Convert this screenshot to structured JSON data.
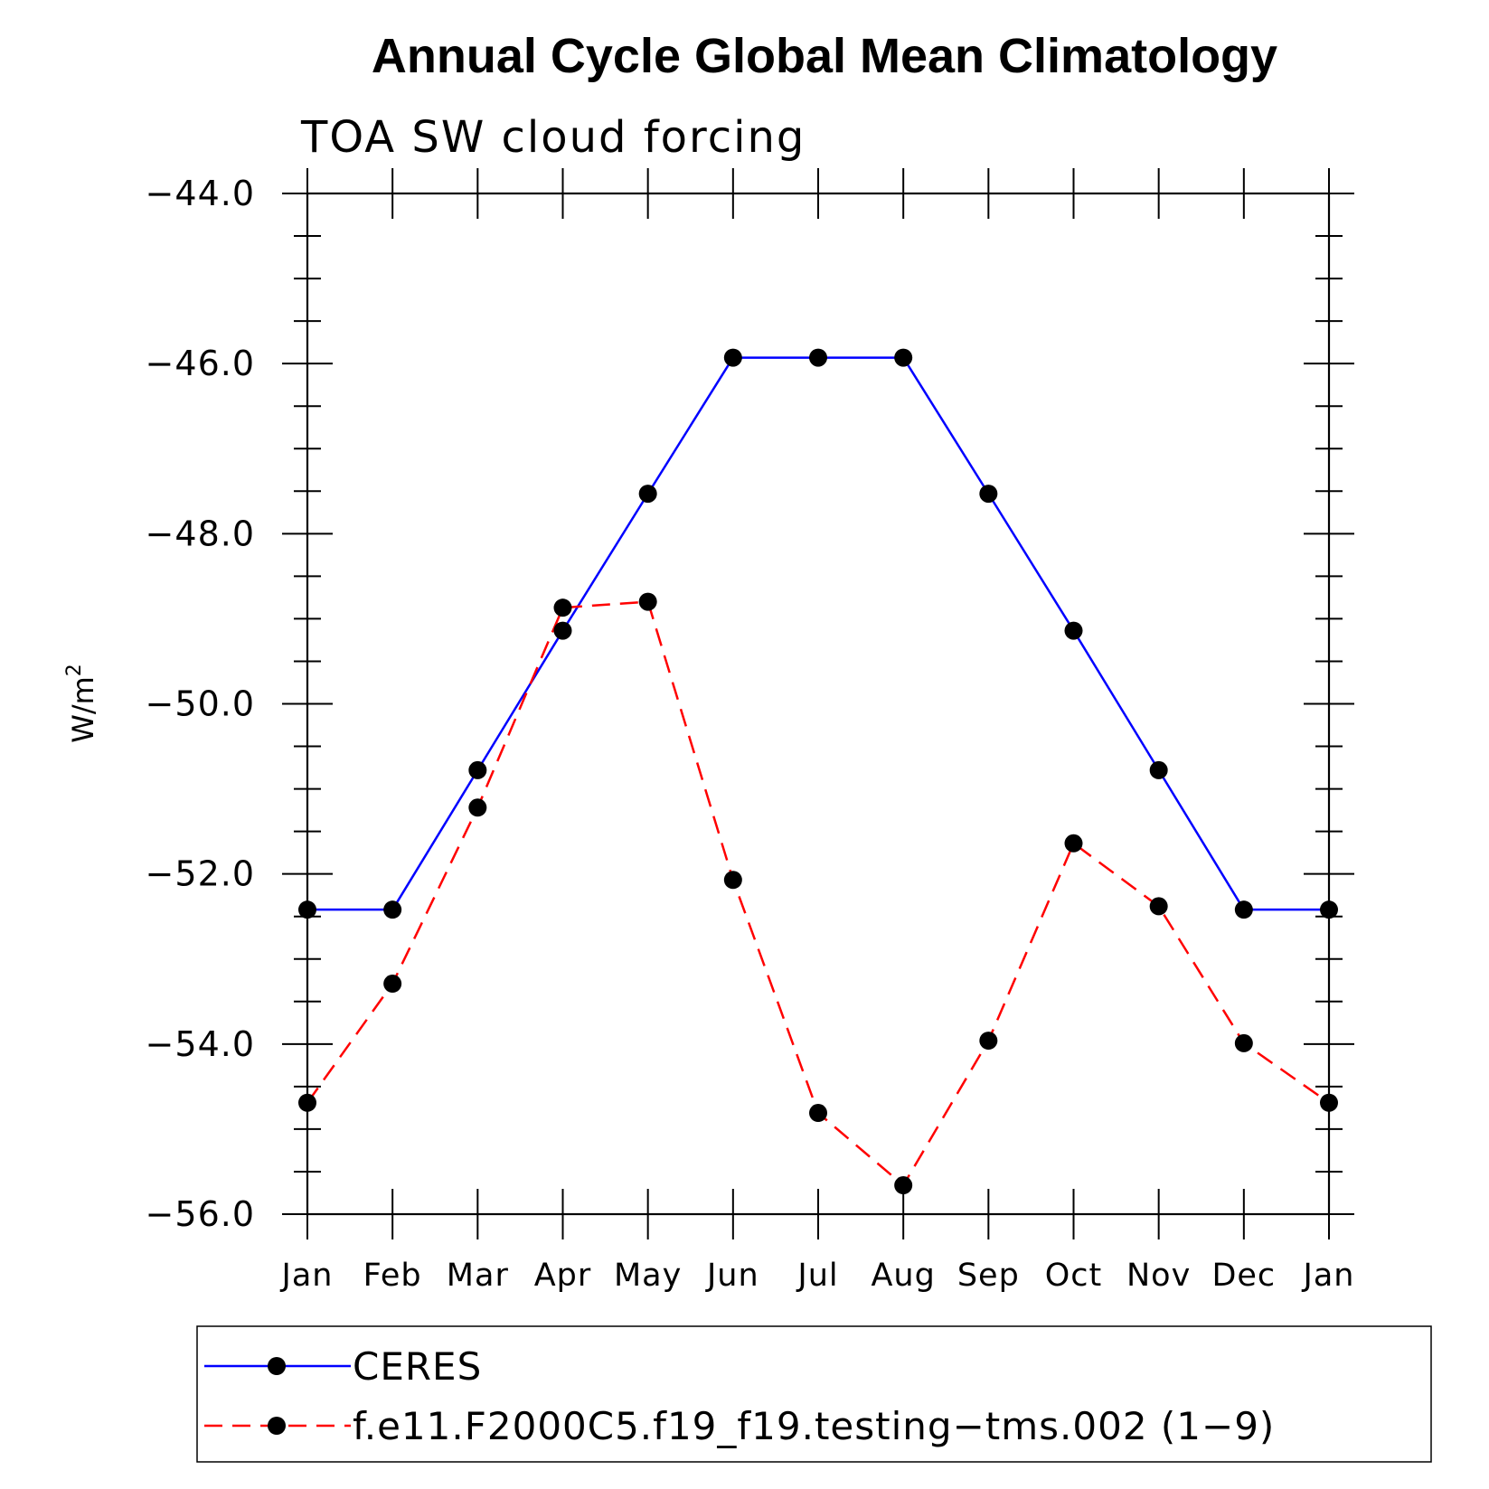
{
  "chart_data": {
    "type": "line",
    "title": "Annual Cycle Global Mean Climatology",
    "subtitle": "TOA SW cloud forcing",
    "ylabel": "W/m",
    "ylabel_superscript": "2",
    "xlabel": "",
    "categories": [
      "Jan",
      "Feb",
      "Mar",
      "Apr",
      "May",
      "Jun",
      "Jul",
      "Aug",
      "Sep",
      "Oct",
      "Nov",
      "Dec",
      "Jan"
    ],
    "ylim": [
      -56.0,
      -44.0
    ],
    "yticks": [
      "-44.0",
      "-46.0",
      "-48.0",
      "-50.0",
      "-52.0",
      "-54.0",
      "-56.0"
    ],
    "grid": false,
    "legend_position": "bottom",
    "series": [
      {
        "name": "CERES",
        "color": "#0000ff",
        "dash": "solid",
        "marker": "filled-circle",
        "values": [
          -52.42,
          -52.42,
          -50.78,
          -49.14,
          -47.53,
          -45.93,
          -45.93,
          -45.93,
          -47.53,
          -49.14,
          -50.78,
          -52.42,
          -52.42
        ]
      },
      {
        "name": "f.e11.F2000C5.f19_f19.testing−tms.002 (1−9)",
        "color": "#ff0000",
        "dash": "dashed",
        "marker": "filled-circle",
        "values": [
          -54.69,
          -53.29,
          -51.22,
          -48.87,
          -48.8,
          -52.07,
          -54.81,
          -55.66,
          -53.96,
          -51.64,
          -52.38,
          -53.99,
          -54.69
        ]
      }
    ]
  }
}
